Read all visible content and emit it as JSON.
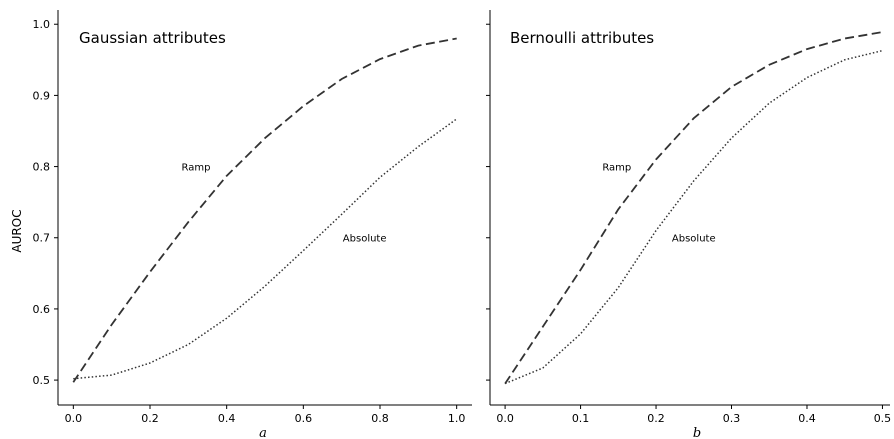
{
  "chart_data": [
    {
      "type": "line",
      "title": "Gaussian attributes",
      "xlabel": "a",
      "ylabel": "AUROC",
      "xlim": [
        -0.04,
        1.04
      ],
      "ylim": [
        0.465,
        1.02
      ],
      "xticks": [
        0.0,
        0.2,
        0.4,
        0.6,
        0.8,
        1.0
      ],
      "xtick_labels": [
        "0.0",
        "0.2",
        "0.4",
        "0.6",
        "0.8",
        "1.0"
      ],
      "yticks": [
        0.5,
        0.6,
        0.7,
        0.8,
        0.9,
        1.0
      ],
      "ytick_labels": [
        "0.5",
        "0.6",
        "0.7",
        "0.8",
        "0.9",
        "1.0"
      ],
      "series": [
        {
          "name": "Ramp",
          "style": "dashed",
          "x": [
            0.0,
            0.1,
            0.2,
            0.3,
            0.4,
            0.5,
            0.6,
            0.7,
            0.8,
            0.9,
            1.0
          ],
          "values": [
            0.497,
            0.578,
            0.652,
            0.722,
            0.787,
            0.84,
            0.885,
            0.923,
            0.951,
            0.97,
            0.98
          ],
          "label_at": [
            0.32,
            0.8
          ]
        },
        {
          "name": "Absolute",
          "style": "dotted",
          "x": [
            0.0,
            0.1,
            0.2,
            0.3,
            0.4,
            0.5,
            0.6,
            0.7,
            0.8,
            0.9,
            1.0
          ],
          "values": [
            0.502,
            0.507,
            0.524,
            0.55,
            0.587,
            0.632,
            0.682,
            0.733,
            0.785,
            0.828,
            0.867
          ],
          "label_at": [
            0.76,
            0.7
          ]
        }
      ]
    },
    {
      "type": "line",
      "title": "Bernoulli attributes",
      "xlabel": "b",
      "ylabel": "",
      "xlim": [
        -0.02,
        0.51
      ],
      "ylim": [
        0.465,
        1.02
      ],
      "xticks": [
        0.0,
        0.1,
        0.2,
        0.3,
        0.4,
        0.5
      ],
      "xtick_labels": [
        "0.0",
        "0.1",
        "0.2",
        "0.3",
        "0.4",
        "0.5"
      ],
      "yticks": [
        0.5,
        0.6,
        0.7,
        0.8,
        0.9,
        1.0
      ],
      "ytick_labels": [],
      "series": [
        {
          "name": "Ramp",
          "style": "dashed",
          "x": [
            0.0,
            0.05,
            0.1,
            0.15,
            0.2,
            0.25,
            0.3,
            0.35,
            0.4,
            0.45,
            0.5
          ],
          "values": [
            0.495,
            0.575,
            0.655,
            0.74,
            0.81,
            0.868,
            0.912,
            0.943,
            0.965,
            0.98,
            0.989
          ],
          "label_at": [
            0.148,
            0.8
          ]
        },
        {
          "name": "Absolute",
          "style": "dotted",
          "x": [
            0.0,
            0.05,
            0.1,
            0.15,
            0.2,
            0.25,
            0.3,
            0.35,
            0.4,
            0.45,
            0.5
          ],
          "values": [
            0.495,
            0.517,
            0.565,
            0.63,
            0.71,
            0.78,
            0.84,
            0.889,
            0.925,
            0.95,
            0.963
          ],
          "label_at": [
            0.25,
            0.7
          ]
        }
      ]
    }
  ]
}
